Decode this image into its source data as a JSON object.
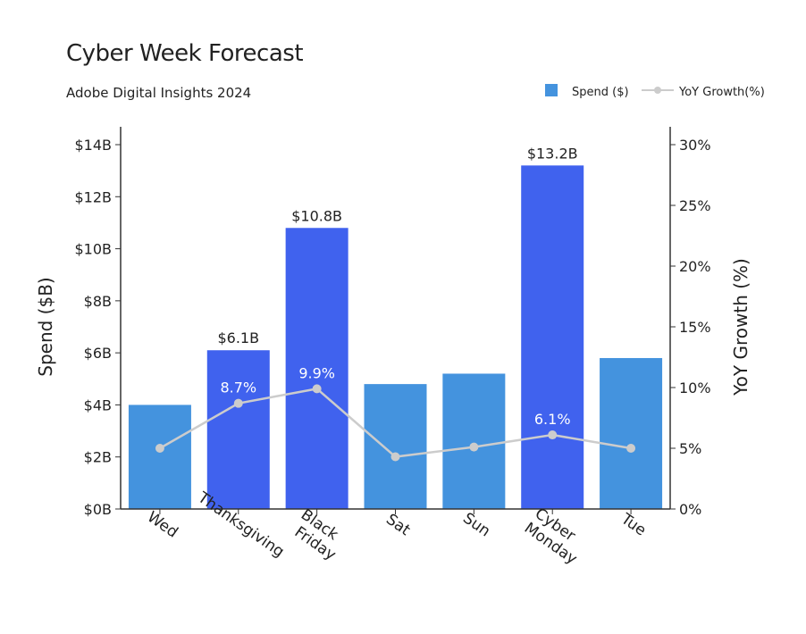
{
  "chart_data": {
    "type": "bar",
    "title": "Cyber Week Forecast",
    "subtitle": "Adobe Digital Insights 2024",
    "categories": [
      "Wed",
      "Thanksgiving",
      "Black Friday",
      "Sat",
      "Sun",
      "Cyber Monday",
      "Tue"
    ],
    "category_lines": [
      [
        "Wed"
      ],
      [
        "Thanksgiving"
      ],
      [
        "Black",
        "Friday"
      ],
      [
        "Sat"
      ],
      [
        "Sun"
      ],
      [
        "Cyber",
        "Monday"
      ],
      [
        "Tue"
      ]
    ],
    "series": [
      {
        "name": "Spend ($)",
        "type": "bar",
        "axis": "left",
        "values": [
          4.0,
          6.1,
          10.8,
          4.8,
          5.2,
          13.2,
          5.8
        ],
        "highlighted": [
          false,
          true,
          true,
          false,
          false,
          true,
          false
        ],
        "data_labels": [
          "",
          "$6.1B",
          "$10.8B",
          "",
          "",
          "$13.2B",
          ""
        ]
      },
      {
        "name": "YoY Growth(%)",
        "type": "line",
        "axis": "right",
        "values": [
          5.0,
          8.7,
          9.9,
          4.3,
          5.1,
          6.1,
          5.0
        ],
        "data_labels": [
          "",
          "8.7%",
          "9.9%",
          "",
          "",
          "6.1%",
          ""
        ]
      }
    ],
    "ylabel": "Spend ($B)",
    "y2label": "YoY Growth (%)",
    "ylim": [
      0,
      14
    ],
    "y2lim": [
      0,
      30
    ],
    "yticks": [
      "$0B",
      "$2B",
      "$4B",
      "$6B",
      "$8B",
      "$10B",
      "$12B",
      "$14B"
    ],
    "y2ticks": [
      "0%",
      "5%",
      "10%",
      "15%",
      "20%",
      "25%",
      "30%"
    ],
    "legend": {
      "placement": "top-right",
      "entries": [
        "Spend ($)",
        "YoY Growth(%)"
      ]
    },
    "grid": false,
    "colors": {
      "bar": "#4493de",
      "bar_highlight": "#4062ee",
      "line": "#cccccc",
      "axis": "#333333"
    }
  }
}
